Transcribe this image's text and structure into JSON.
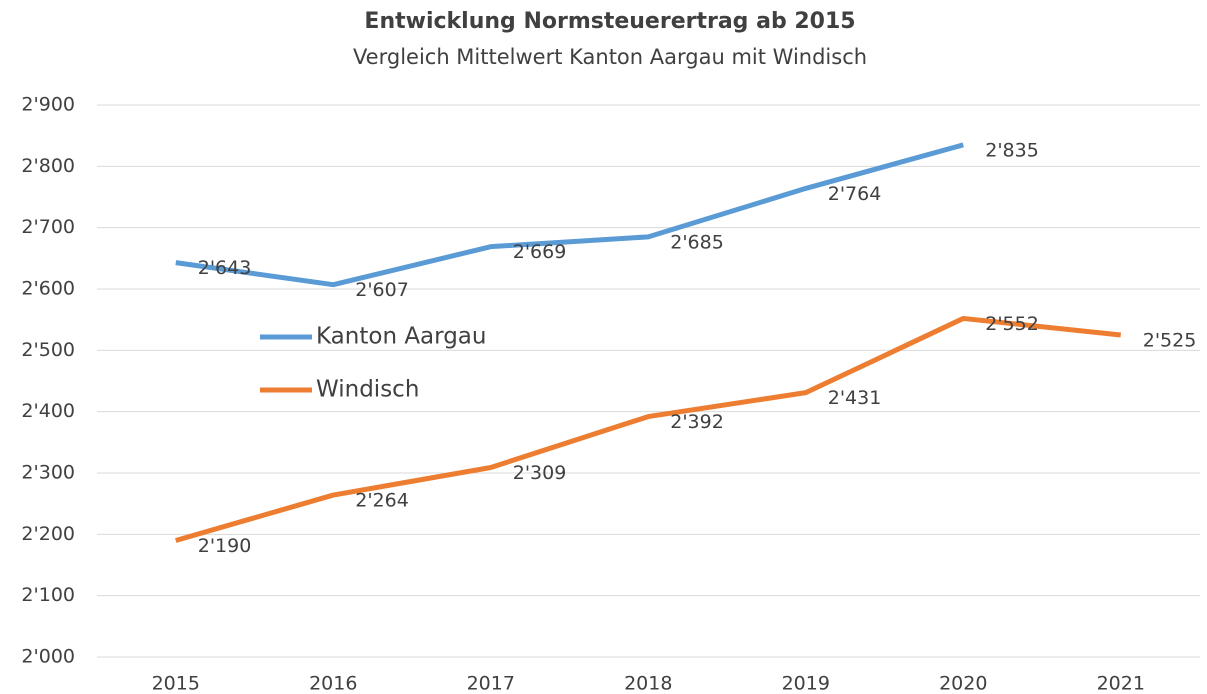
{
  "chart_data": {
    "type": "line",
    "title": "Entwicklung Normsteuerertrag ab 2015",
    "subtitle": "Vergleich Mittelwert Kanton Aargau mit Windisch",
    "categories": [
      "2015",
      "2016",
      "2017",
      "2018",
      "2019",
      "2020",
      "2021"
    ],
    "series": [
      {
        "name": "Kanton Aargau",
        "color": "#5b9bd5",
        "values": [
          2643,
          2607,
          2669,
          2685,
          2764,
          2835,
          null
        ],
        "value_labels": [
          "2'643",
          "2'607",
          "2'669",
          "2'685",
          "2'764",
          "2'835",
          null
        ]
      },
      {
        "name": "Windisch",
        "color": "#ed7d31",
        "values": [
          2190,
          2264,
          2309,
          2392,
          2431,
          2552,
          2525
        ],
        "value_labels": [
          "2'190",
          "2'264",
          "2'309",
          "2'392",
          "2'431",
          "2'552",
          "2'525"
        ]
      }
    ],
    "ylim": [
      2000,
      2900
    ],
    "yticks": [
      {
        "value": 2000,
        "label": "2'000"
      },
      {
        "value": 2100,
        "label": "2'100"
      },
      {
        "value": 2200,
        "label": "2'200"
      },
      {
        "value": 2300,
        "label": "2'300"
      },
      {
        "value": 2400,
        "label": "2'400"
      },
      {
        "value": 2500,
        "label": "2'500"
      },
      {
        "value": 2600,
        "label": "2'600"
      },
      {
        "value": 2700,
        "label": "2'700"
      },
      {
        "value": 2800,
        "label": "2'800"
      },
      {
        "value": 2900,
        "label": "2'900"
      }
    ],
    "grid": true
  }
}
